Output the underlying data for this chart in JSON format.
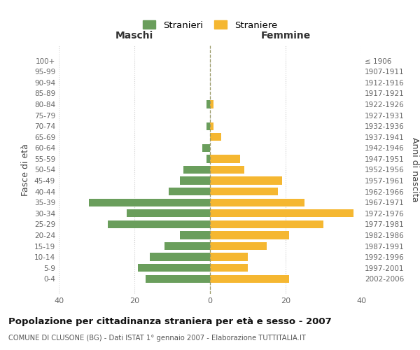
{
  "age_groups": [
    "0-4",
    "5-9",
    "10-14",
    "15-19",
    "20-24",
    "25-29",
    "30-34",
    "35-39",
    "40-44",
    "45-49",
    "50-54",
    "55-59",
    "60-64",
    "65-69",
    "70-74",
    "75-79",
    "80-84",
    "85-89",
    "90-94",
    "95-99",
    "100+"
  ],
  "birth_years": [
    "2002-2006",
    "1997-2001",
    "1992-1996",
    "1987-1991",
    "1982-1986",
    "1977-1981",
    "1972-1976",
    "1967-1971",
    "1962-1966",
    "1957-1961",
    "1952-1956",
    "1947-1951",
    "1942-1946",
    "1937-1941",
    "1932-1936",
    "1927-1931",
    "1922-1926",
    "1917-1921",
    "1912-1916",
    "1907-1911",
    "≤ 1906"
  ],
  "maschi": [
    17,
    19,
    16,
    12,
    8,
    27,
    22,
    32,
    11,
    8,
    7,
    1,
    2,
    0,
    1,
    0,
    1,
    0,
    0,
    0,
    0
  ],
  "femmine": [
    21,
    10,
    10,
    15,
    21,
    30,
    38,
    25,
    18,
    19,
    9,
    8,
    0,
    3,
    1,
    0,
    1,
    0,
    0,
    0,
    0
  ],
  "color_maschi": "#6a9e5c",
  "color_femmine": "#f5b731",
  "background_color": "#ffffff",
  "grid_color": "#cccccc",
  "title": "Popolazione per cittadinanza straniera per età e sesso - 2007",
  "subtitle": "COMUNE DI CLUSONE (BG) - Dati ISTAT 1° gennaio 2007 - Elaborazione TUTTITALIA.IT",
  "xlabel_left": "Maschi",
  "xlabel_right": "Femmine",
  "ylabel_left": "Fasce di età",
  "ylabel_right": "Anni di nascita",
  "xlim": 40,
  "legend_stranieri": "Stranieri",
  "legend_straniere": "Straniere"
}
